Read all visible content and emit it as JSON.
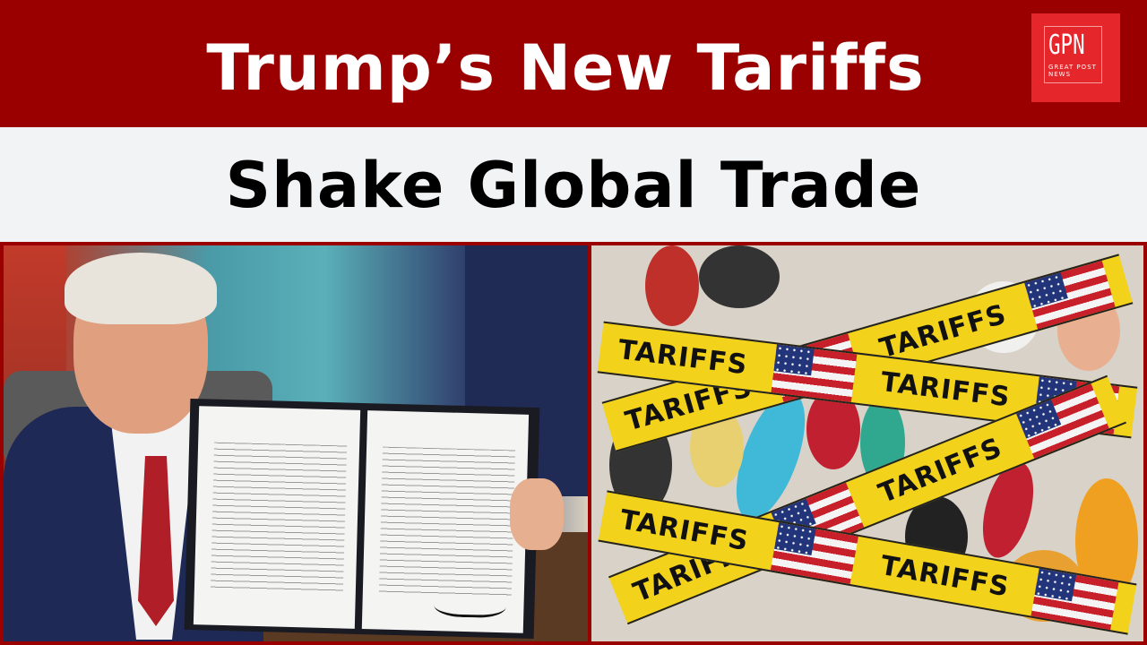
{
  "headline": {
    "line1": "Trump’s New Tariffs",
    "line2": "Shake Global Trade"
  },
  "logo": {
    "main": "GPN",
    "sub_line1": "GREAT POST",
    "sub_line2": "NEWS"
  },
  "tapes": [
    {
      "text_a": "TARIFFS",
      "text_b": "TARIFFS"
    },
    {
      "text_a": "TARIFFS",
      "text_b": "TARIFFS"
    },
    {
      "text_a": "TARIFFS",
      "text_b": "TARIFFS"
    },
    {
      "text_a": "TARIFFS",
      "text_b": "TARIFFS"
    }
  ],
  "colors": {
    "brand_red": "#9b0000",
    "logo_red": "#e5262a",
    "tape_yellow": "#f2d21a"
  }
}
